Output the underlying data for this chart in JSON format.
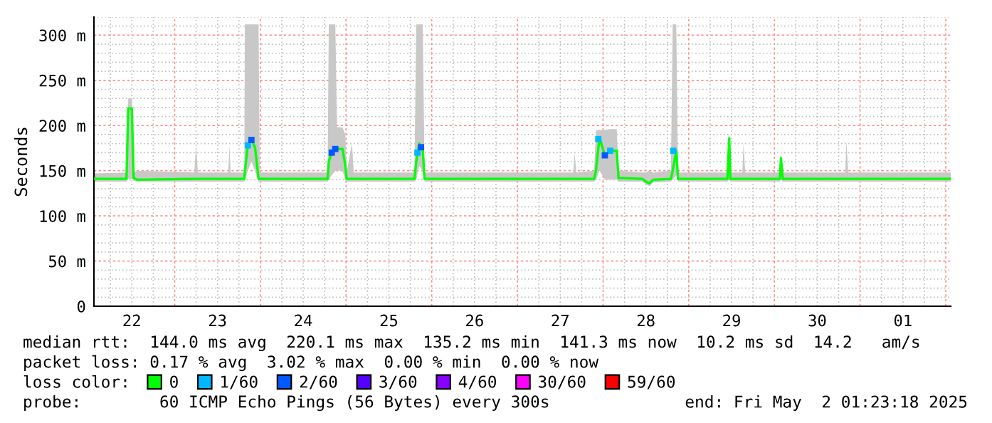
{
  "chart_data": {
    "type": "line",
    "ylabel": "Seconds",
    "xlim": [
      "2025-04-22T01:23",
      "2025-05-02T01:23"
    ],
    "xticks": [
      {
        "value": "2025-04-22T12:00",
        "label": "22"
      },
      {
        "value": "2025-04-23T12:00",
        "label": "23"
      },
      {
        "value": "2025-04-24T12:00",
        "label": "24"
      },
      {
        "value": "2025-04-25T12:00",
        "label": "25"
      },
      {
        "value": "2025-04-26T12:00",
        "label": "26"
      },
      {
        "value": "2025-04-27T12:00",
        "label": "27"
      },
      {
        "value": "2025-04-28T12:00",
        "label": "28"
      },
      {
        "value": "2025-04-29T12:00",
        "label": "29"
      },
      {
        "value": "2025-04-30T12:00",
        "label": "30"
      },
      {
        "value": "2025-05-01T12:00",
        "label": "01"
      }
    ],
    "ylim": [
      0,
      320
    ],
    "yticks": [
      0,
      {
        "value": 50,
        "label": "50 m"
      },
      {
        "value": 100,
        "label": "100 m"
      },
      {
        "value": 150,
        "label": "150 m"
      },
      {
        "value": 200,
        "label": "200 m"
      },
      {
        "value": 250,
        "label": "250 m"
      },
      {
        "value": 300,
        "label": "300 m"
      }
    ],
    "grid": true,
    "legend": "bottom",
    "legend_title": "loss color:",
    "series": [
      {
        "name": "0",
        "color": "#00ff00",
        "x": [
          "2025-04-22T01:23",
          "2025-04-22T10:30",
          "2025-04-22T11:00",
          "2025-04-22T12:00",
          "2025-04-22T12:30",
          "2025-04-22T13:30",
          "2025-04-23T05:30",
          "2025-04-23T06:00",
          "2025-04-23T06:30",
          "2025-04-23T15:00",
          "2025-04-23T15:20",
          "2025-04-23T15:40",
          "2025-04-23T19:30",
          "2025-04-23T19:40",
          "2025-04-23T20:30",
          "2025-04-23T21:30",
          "2025-04-23T22:30",
          "2025-04-23T23:30",
          "2025-04-23T23:50",
          "2025-04-24T18:50",
          "2025-04-24T19:10",
          "2025-04-24T20:00",
          "2025-04-24T21:00",
          "2025-04-24T21:30",
          "2025-04-24T23:00",
          "2025-04-24T23:50",
          "2025-04-25T00:10",
          "2025-04-25T01:40",
          "2025-04-25T02:10",
          "2025-04-25T19:10",
          "2025-04-25T19:40",
          "2025-04-25T20:30",
          "2025-04-25T21:30",
          "2025-04-25T22:00",
          "2025-04-27T15:40",
          "2025-04-27T16:00",
          "2025-04-27T16:30",
          "2025-04-27T21:30",
          "2025-04-27T22:00",
          "2025-04-27T23:00",
          "2025-04-28T00:30",
          "2025-04-28T02:00",
          "2025-04-28T03:50",
          "2025-04-28T04:20",
          "2025-04-28T11:00",
          "2025-04-28T12:00",
          "2025-04-28T13:00",
          "2025-04-28T14:00",
          "2025-04-28T19:00",
          "2025-04-28T19:30",
          "2025-04-28T20:30",
          "2025-04-28T21:00",
          "2025-04-29T10:50",
          "2025-04-29T11:20",
          "2025-04-29T11:40",
          "2025-04-29T15:00",
          "2025-04-29T15:20",
          "2025-04-29T15:50",
          "2025-04-30T01:30",
          "2025-04-30T01:50",
          "2025-04-30T02:20",
          "2025-04-30T19:50",
          "2025-04-30T20:10",
          "2025-04-30T20:40",
          "2025-05-02T01:23"
        ],
        "values": [
          141,
          141,
          219,
          219,
          142,
          140,
          141,
          141,
          141,
          141,
          141,
          141,
          141,
          150,
          178,
          184,
          176,
          141,
          141,
          141,
          160,
          170,
          174,
          174,
          174,
          155,
          141,
          141,
          141,
          141,
          160,
          180,
          172,
          141,
          141,
          141,
          141,
          141,
          150,
          187,
          167,
          172,
          172,
          142,
          141,
          138,
          136,
          140,
          141,
          150,
          172,
          141,
          141,
          186,
          141,
          141,
          141,
          141,
          141,
          164,
          141,
          141,
          141,
          141,
          141
        ],
        "lower": [
          138,
          138,
          141,
          141,
          139,
          138,
          138,
          138,
          138,
          138,
          138,
          138,
          138,
          140,
          150,
          160,
          150,
          138,
          138,
          138,
          140,
          145,
          150,
          150,
          150,
          140,
          138,
          138,
          138,
          138,
          140,
          155,
          150,
          138,
          138,
          138,
          138,
          138,
          140,
          150,
          140,
          140,
          140,
          138,
          138,
          135,
          133,
          137,
          138,
          140,
          145,
          138,
          138,
          140,
          138,
          138,
          138,
          138,
          138,
          140,
          138,
          138,
          138,
          138,
          138
        ],
        "upper": [
          147,
          148,
          230,
          230,
          148,
          150,
          148,
          178,
          148,
          148,
          178,
          148,
          148,
          312,
          312,
          312,
          312,
          312,
          148,
          148,
          312,
          312,
          312,
          198,
          198,
          190,
          148,
          180,
          148,
          148,
          312,
          312,
          312,
          148,
          148,
          170,
          148,
          150,
          195,
          195,
          195,
          196,
          196,
          150,
          148,
          148,
          150,
          148,
          150,
          312,
          312,
          148,
          148,
          188,
          148,
          148,
          180,
          148,
          148,
          166,
          148,
          148,
          183,
          148,
          148
        ]
      },
      {
        "name": "1/60",
        "color": "#00b8ff",
        "type": "scatter",
        "marker": "square",
        "x": [
          "2025-04-23T20:30",
          "2025-04-25T20:00",
          "2025-04-27T22:40",
          "2025-04-28T02:00",
          "2025-04-28T19:40"
        ],
        "values": [
          178,
          170,
          185,
          172,
          172
        ]
      },
      {
        "name": "2/60",
        "color": "#0059ff",
        "type": "scatter",
        "marker": "square",
        "x": [
          "2025-04-23T21:30",
          "2025-04-24T20:00",
          "2025-04-24T21:00",
          "2025-04-25T21:00",
          "2025-04-28T00:30"
        ],
        "values": [
          184,
          170,
          174,
          176,
          167
        ]
      },
      {
        "name": "3/60",
        "color": "#5500ff",
        "type": "scatter",
        "marker": "square"
      },
      {
        "name": "4/60",
        "color": "#8800ff",
        "type": "scatter",
        "marker": "square"
      },
      {
        "name": "30/60",
        "color": "#ff00ff",
        "type": "scatter",
        "marker": "square"
      },
      {
        "name": "59/60",
        "color": "#ff0000",
        "type": "scatter",
        "marker": "square"
      }
    ],
    "annotations": [
      "median rtt:  144.0 ms avg  220.1 ms max  135.2 ms min  141.3 ms now  10.2 ms sd  14.2   am/s",
      "packet loss: 0.17 % avg  3.02 % max  0.00 % min  0.00 % now",
      "probe:        60 ICMP Echo Pings (56 Bytes) every 300s",
      "end: Fri May  2 01:23:18 2025"
    ]
  }
}
